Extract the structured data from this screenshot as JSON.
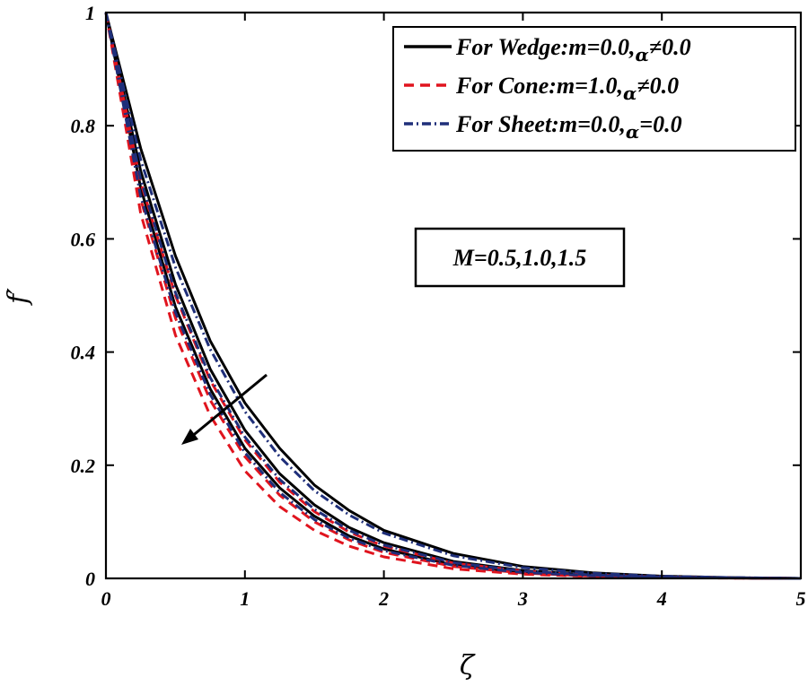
{
  "chart_data": {
    "type": "line",
    "xlabel": "ζ",
    "ylabel": "f′",
    "xlim": [
      0,
      5
    ],
    "ylim": [
      0,
      1
    ],
    "x_ticks": [
      "0",
      "1",
      "2",
      "3",
      "4",
      "5"
    ],
    "y_ticks": [
      "0",
      "0.2",
      "0.4",
      "0.6",
      "0.8",
      "1"
    ],
    "legend": [
      {
        "prefix": "For Wedge:m=0.0,",
        "greek": "α",
        "suffix": "≠0.0",
        "color": "#000000",
        "style": "solid"
      },
      {
        "prefix": "For Cone:m=1.0,",
        "greek": "α",
        "suffix": "≠0.0",
        "color": "#e0141e",
        "style": "dashed"
      },
      {
        "prefix": "For Sheet:m=0.0,",
        "greek": "α",
        "suffix": "=0.0",
        "color": "#1f2f7a",
        "style": "dashdot"
      }
    ],
    "annotation": "M=0.5,1.0,1.5",
    "arrow_direction": "down-left (increasing M)",
    "series": [
      {
        "name": "Wedge M=0.5",
        "group": "wedge",
        "color": "#000000",
        "style": "solid",
        "x": [
          0,
          0.25,
          0.5,
          0.75,
          1,
          1.25,
          1.5,
          1.75,
          2,
          2.5,
          3,
          3.5,
          4,
          4.5,
          5
        ],
        "y": [
          1,
          0.76,
          0.57,
          0.42,
          0.31,
          0.23,
          0.165,
          0.12,
          0.085,
          0.044,
          0.021,
          0.01,
          0.004,
          0.0015,
          0
        ]
      },
      {
        "name": "Wedge M=1.0",
        "group": "wedge",
        "color": "#000000",
        "style": "solid",
        "x": [
          0,
          0.25,
          0.5,
          0.75,
          1,
          1.25,
          1.5,
          1.75,
          2,
          2.5,
          3,
          3.5,
          4,
          4.5,
          5
        ],
        "y": [
          1,
          0.72,
          0.52,
          0.37,
          0.262,
          0.185,
          0.13,
          0.09,
          0.063,
          0.03,
          0.014,
          0.006,
          0.0025,
          0.001,
          0
        ]
      },
      {
        "name": "Wedge M=1.5",
        "group": "wedge",
        "color": "#000000",
        "style": "solid",
        "x": [
          0,
          0.25,
          0.5,
          0.75,
          1,
          1.25,
          1.5,
          1.75,
          2,
          2.5,
          3,
          3.5,
          4,
          4.5,
          5
        ],
        "y": [
          1,
          0.69,
          0.48,
          0.335,
          0.23,
          0.16,
          0.11,
          0.075,
          0.052,
          0.024,
          0.011,
          0.005,
          0.002,
          0.0008,
          0
        ]
      },
      {
        "name": "Cone M=0.5",
        "group": "cone",
        "color": "#e0141e",
        "style": "dashed",
        "x": [
          0,
          0.25,
          0.5,
          0.75,
          1,
          1.25,
          1.5,
          1.75,
          2,
          2.5,
          3,
          3.5,
          4,
          4.5,
          5
        ],
        "y": [
          1,
          0.7,
          0.5,
          0.35,
          0.245,
          0.17,
          0.118,
          0.082,
          0.057,
          0.027,
          0.013,
          0.006,
          0.0025,
          0.001,
          0
        ]
      },
      {
        "name": "Cone M=1.0",
        "group": "cone",
        "color": "#e0141e",
        "style": "dashed",
        "x": [
          0,
          0.25,
          0.5,
          0.75,
          1,
          1.25,
          1.5,
          1.75,
          2,
          2.5,
          3,
          3.5,
          4,
          4.5,
          5
        ],
        "y": [
          1,
          0.67,
          0.46,
          0.315,
          0.215,
          0.147,
          0.1,
          0.068,
          0.046,
          0.021,
          0.0095,
          0.004,
          0.0018,
          0.0007,
          0
        ]
      },
      {
        "name": "Cone M=1.5",
        "group": "cone",
        "color": "#e0141e",
        "style": "dashed",
        "x": [
          0,
          0.25,
          0.5,
          0.75,
          1,
          1.25,
          1.5,
          1.75,
          2,
          2.5,
          3,
          3.5,
          4,
          4.5,
          5
        ],
        "y": [
          1,
          0.645,
          0.43,
          0.288,
          0.19,
          0.127,
          0.085,
          0.057,
          0.038,
          0.017,
          0.0075,
          0.0033,
          0.0014,
          0.0005,
          0
        ]
      },
      {
        "name": "Sheet M=0.5",
        "group": "sheet",
        "color": "#1f2f7a",
        "style": "dashdot",
        "x": [
          0,
          0.25,
          0.5,
          0.75,
          1,
          1.25,
          1.5,
          1.75,
          2,
          2.5,
          3,
          3.5,
          4,
          4.5,
          5
        ],
        "y": [
          1,
          0.74,
          0.55,
          0.405,
          0.295,
          0.215,
          0.155,
          0.112,
          0.08,
          0.04,
          0.019,
          0.009,
          0.0038,
          0.0014,
          0
        ]
      },
      {
        "name": "Sheet M=1.0",
        "group": "sheet",
        "color": "#1f2f7a",
        "style": "dashdot",
        "x": [
          0,
          0.25,
          0.5,
          0.75,
          1,
          1.25,
          1.5,
          1.75,
          2,
          2.5,
          3,
          3.5,
          4,
          4.5,
          5
        ],
        "y": [
          1,
          0.705,
          0.505,
          0.355,
          0.25,
          0.175,
          0.122,
          0.085,
          0.059,
          0.028,
          0.013,
          0.006,
          0.0025,
          0.001,
          0
        ]
      },
      {
        "name": "Sheet M=1.5",
        "group": "sheet",
        "color": "#1f2f7a",
        "style": "dashdot",
        "x": [
          0,
          0.25,
          0.5,
          0.75,
          1,
          1.25,
          1.5,
          1.75,
          2,
          2.5,
          3,
          3.5,
          4,
          4.5,
          5
        ],
        "y": [
          1,
          0.675,
          0.47,
          0.325,
          0.222,
          0.152,
          0.104,
          0.071,
          0.049,
          0.023,
          0.0105,
          0.0047,
          0.002,
          0.0008,
          0
        ]
      }
    ]
  }
}
